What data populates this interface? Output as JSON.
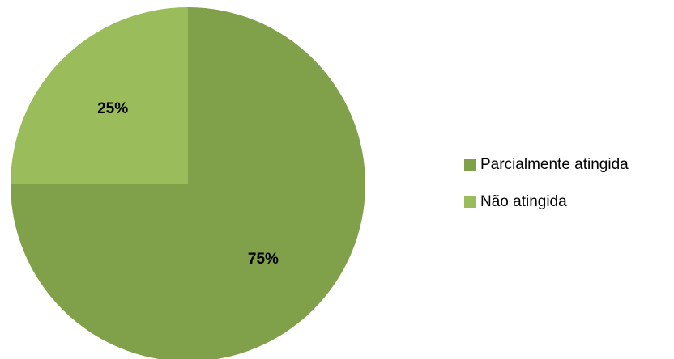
{
  "chart_data": {
    "type": "pie",
    "categories": [
      "Parcialmente atingida",
      "Não atingida"
    ],
    "values": [
      75,
      25
    ],
    "data_labels": [
      "75%",
      "25%"
    ],
    "colors": [
      "#81a04a",
      "#9bbc5a"
    ],
    "legend": "right",
    "title": ""
  }
}
